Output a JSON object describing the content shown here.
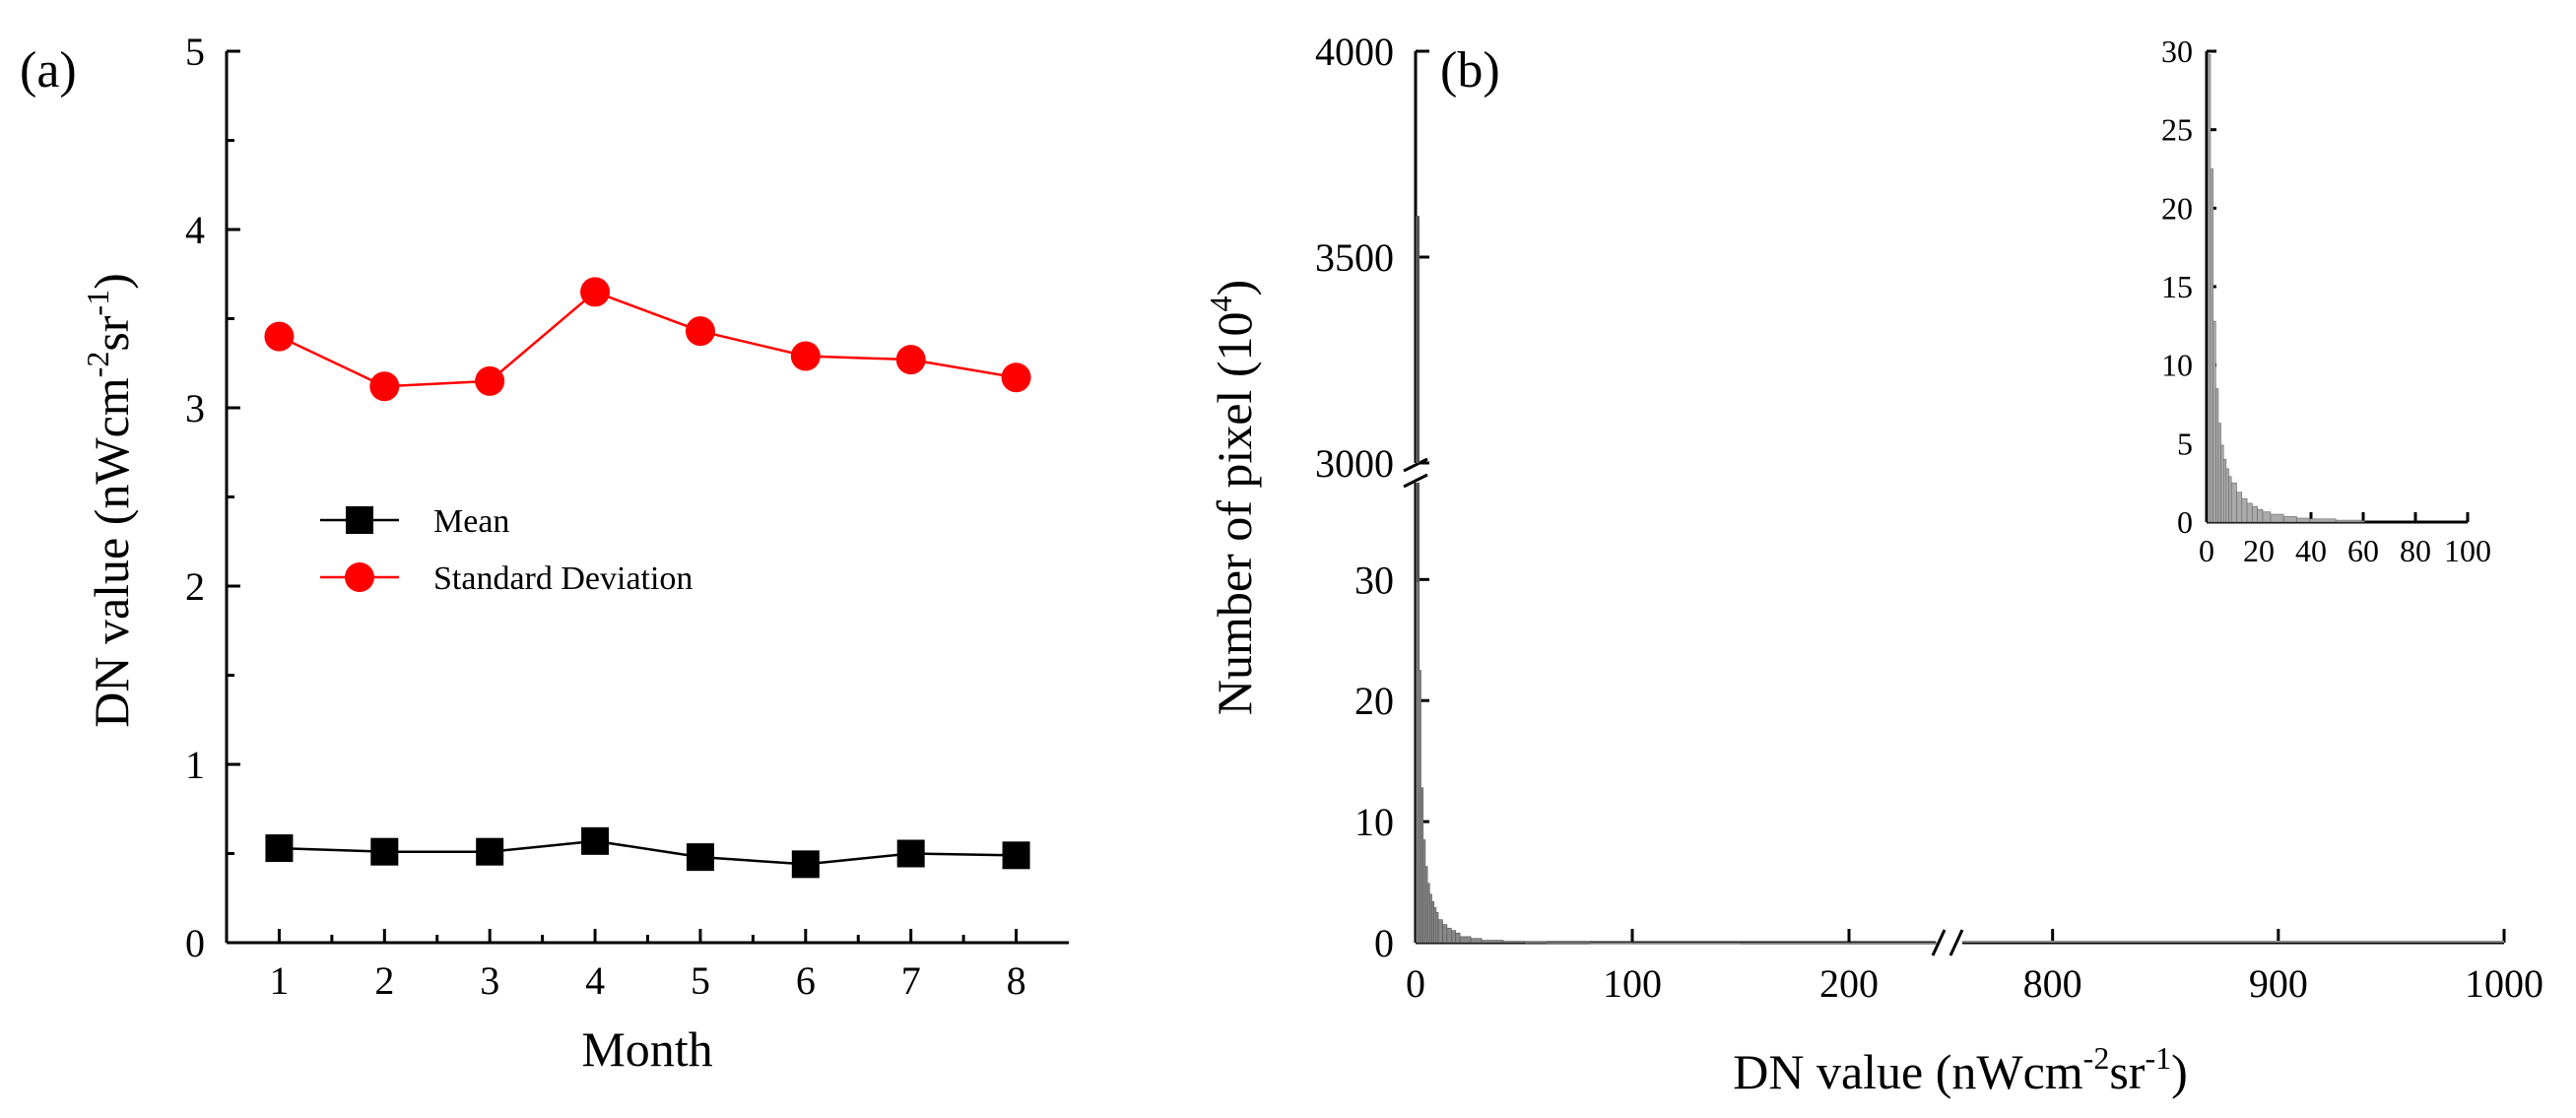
{
  "chart_data": [
    {
      "panel": "(a)",
      "type": "line",
      "title": "",
      "xlabel": "Month",
      "ylabel_main": "DN value (nWcm",
      "ylabel_sup1": "-2",
      "ylabel_mid": "sr",
      "ylabel_sup2": "-1",
      "ylabel_end": ")",
      "x": [
        1,
        2,
        3,
        4,
        5,
        6,
        7,
        8
      ],
      "xlim": [
        0.5,
        8.5
      ],
      "ylim": [
        0,
        5
      ],
      "x_ticks": [
        "1",
        "2",
        "3",
        "4",
        "5",
        "6",
        "7",
        "8"
      ],
      "y_ticks": [
        "0",
        "1",
        "2",
        "3",
        "4",
        "5"
      ],
      "legend_position": "center-left",
      "series": [
        {
          "name": "Mean",
          "color": "#000000",
          "marker": "square",
          "values": [
            0.53,
            0.51,
            0.51,
            0.57,
            0.48,
            0.44,
            0.5,
            0.49
          ]
        },
        {
          "name": "Standard Deviation",
          "color": "#ff0000",
          "marker": "circle",
          "values": [
            3.4,
            3.12,
            3.15,
            3.65,
            3.43,
            3.29,
            3.27,
            3.17
          ]
        }
      ]
    },
    {
      "panel": "(b)",
      "type": "bar",
      "title": "",
      "xlabel_main": "DN value (nWcm",
      "xlabel_sup1": "-2",
      "xlabel_mid": "sr",
      "xlabel_sup2": "-1",
      "xlabel_end": ")",
      "ylabel_main": "Number of pixel (10",
      "ylabel_sup": "4",
      "ylabel_end": ")",
      "x_ticks_left": [
        "0",
        "100",
        "200"
      ],
      "x_ticks_right": [
        "800",
        "900",
        "1000"
      ],
      "y_ticks_lower": [
        "0",
        "10",
        "20",
        "30"
      ],
      "y_ticks_upper": [
        "3000",
        "3500",
        "4000"
      ],
      "x_break": [
        240,
        760
      ],
      "y_break": [
        38,
        3000
      ],
      "peak_value": 3600,
      "x": [
        0,
        1,
        2,
        3,
        4,
        5,
        6,
        7,
        8,
        9,
        10,
        12,
        14,
        16,
        18,
        20,
        25,
        30,
        40,
        50,
        60,
        80,
        100,
        150,
        200,
        240
      ],
      "values": [
        3600,
        29.8,
        22.5,
        12.8,
        8.5,
        6.3,
        4.9,
        4.0,
        3.4,
        2.9,
        2.5,
        1.9,
        1.5,
        1.2,
        1.0,
        0.8,
        0.5,
        0.35,
        0.2,
        0.12,
        0.08,
        0.05,
        0.03,
        0.02,
        0.01,
        0.01
      ]
    },
    {
      "panel": "inset",
      "type": "bar",
      "xlim": [
        0,
        100
      ],
      "ylim": [
        0,
        30
      ],
      "x_ticks": [
        "0",
        "20",
        "40",
        "60",
        "80",
        "100"
      ],
      "y_ticks": [
        "0",
        "5",
        "10",
        "15",
        "20",
        "25",
        "30"
      ],
      "x": [
        1,
        2,
        3,
        4,
        5,
        6,
        7,
        8,
        9,
        10,
        12,
        14,
        16,
        18,
        20,
        22,
        25,
        30,
        35,
        40,
        50,
        60
      ],
      "values": [
        29.8,
        22.5,
        12.8,
        8.5,
        6.3,
        4.9,
        4.0,
        3.4,
        2.9,
        2.5,
        1.9,
        1.5,
        1.2,
        1.0,
        0.8,
        0.65,
        0.5,
        0.35,
        0.25,
        0.2,
        0.12,
        0.08
      ]
    }
  ]
}
